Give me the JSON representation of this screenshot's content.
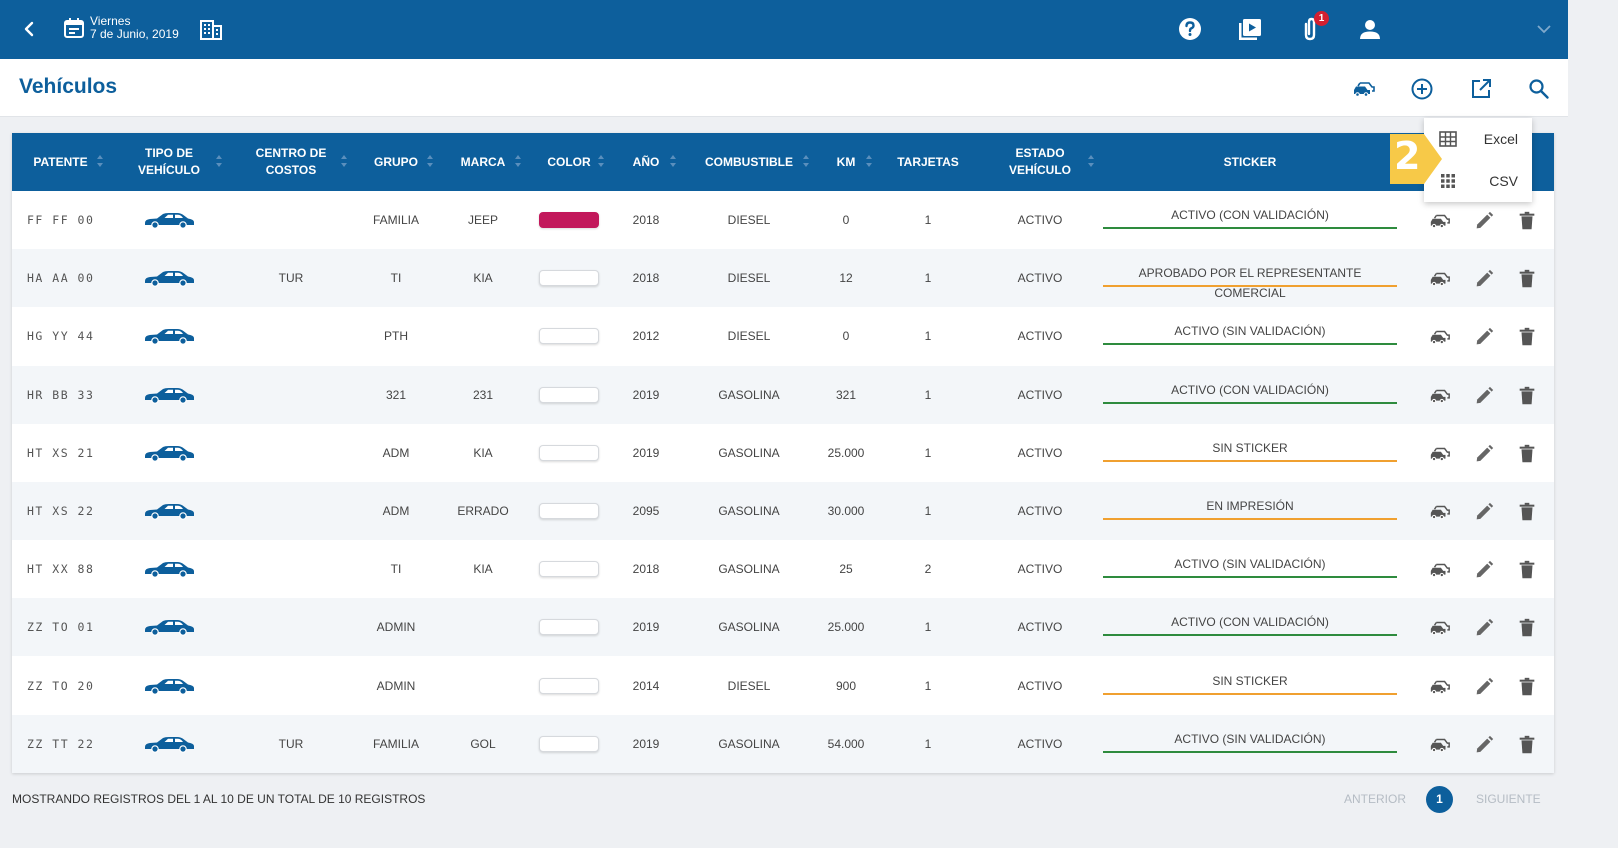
{
  "topbar": {
    "day": "Viernes",
    "date": "7 de Junio, 2019",
    "notifications_badge": "1"
  },
  "page": {
    "title": "Vehículos"
  },
  "table": {
    "headers": [
      "PATENTE",
      "TIPO DE VEHÍCULO",
      "CENTRO DE COSTOS",
      "GRUPO",
      "MARCA",
      "COLOR",
      "AÑO",
      "COMBUSTIBLE",
      "KM",
      "TARJETAS",
      "ESTADO VEHÍCULO",
      "STICKER"
    ],
    "rows": [
      {
        "plate": "FF FF 00",
        "cost_center": "",
        "group": "FAMILIA",
        "brand": "JEEP",
        "color": "#c2185b",
        "year": "2018",
        "fuel": "DIESEL",
        "km": "0",
        "cards": "1",
        "status": "ACTIVO",
        "sticker": "ACTIVO (CON VALIDACIÓN)",
        "sticker_color": "green"
      },
      {
        "plate": "HA AA 00",
        "cost_center": "TUR",
        "group": "TI",
        "brand": "KIA",
        "color": "#ffffff",
        "year": "2018",
        "fuel": "DIESEL",
        "km": "12",
        "cards": "1",
        "status": "ACTIVO",
        "sticker": "APROBADO POR EL REPRESENTANTE COMERCIAL",
        "sticker_color": "orange"
      },
      {
        "plate": "HG YY 44",
        "cost_center": "",
        "group": "PTH",
        "brand": "",
        "color": "#ffffff",
        "year": "2012",
        "fuel": "DIESEL",
        "km": "0",
        "cards": "1",
        "status": "ACTIVO",
        "sticker": "ACTIVO (SIN VALIDACIÓN)",
        "sticker_color": "green"
      },
      {
        "plate": "HR BB 33",
        "cost_center": "",
        "group": "321",
        "brand": "231",
        "color": "#ffffff",
        "year": "2019",
        "fuel": "GASOLINA",
        "km": "321",
        "cards": "1",
        "status": "ACTIVO",
        "sticker": "ACTIVO (CON VALIDACIÓN)",
        "sticker_color": "green"
      },
      {
        "plate": "HT XS 21",
        "cost_center": "",
        "group": "ADM",
        "brand": "KIA",
        "color": "#ffffff",
        "year": "2019",
        "fuel": "GASOLINA",
        "km": "25.000",
        "cards": "1",
        "status": "ACTIVO",
        "sticker": "SIN STICKER",
        "sticker_color": "orange"
      },
      {
        "plate": "HT XS 22",
        "cost_center": "",
        "group": "ADM",
        "brand": "ERRADO",
        "color": "#ffffff",
        "year": "2095",
        "fuel": "GASOLINA",
        "km": "30.000",
        "cards": "1",
        "status": "ACTIVO",
        "sticker": "EN IMPRESIÓN",
        "sticker_color": "orange"
      },
      {
        "plate": "HT XX 88",
        "cost_center": "",
        "group": "TI",
        "brand": "KIA",
        "color": "#ffffff",
        "year": "2018",
        "fuel": "GASOLINA",
        "km": "25",
        "cards": "2",
        "status": "ACTIVO",
        "sticker": "ACTIVO (SIN VALIDACIÓN)",
        "sticker_color": "green"
      },
      {
        "plate": "ZZ TO 01",
        "cost_center": "",
        "group": "ADMIN",
        "brand": "",
        "color": "#ffffff",
        "year": "2019",
        "fuel": "GASOLINA",
        "km": "25.000",
        "cards": "1",
        "status": "ACTIVO",
        "sticker": "ACTIVO (CON VALIDACIÓN)",
        "sticker_color": "green"
      },
      {
        "plate": "ZZ TO 20",
        "cost_center": "",
        "group": "ADMIN",
        "brand": "",
        "color": "#ffffff",
        "year": "2014",
        "fuel": "DIESEL",
        "km": "900",
        "cards": "1",
        "status": "ACTIVO",
        "sticker": "SIN STICKER",
        "sticker_color": "orange"
      },
      {
        "plate": "ZZ TT 22",
        "cost_center": "TUR",
        "group": "FAMILIA",
        "brand": "GOL",
        "color": "#ffffff",
        "year": "2019",
        "fuel": "GASOLINA",
        "km": "54.000",
        "cards": "1",
        "status": "ACTIVO",
        "sticker": "ACTIVO (SIN VALIDACIÓN)",
        "sticker_color": "green"
      }
    ]
  },
  "export_menu": {
    "excel_label": "Excel",
    "csv_label": "CSV",
    "step_marker": "2"
  },
  "footer": {
    "summary": "MOSTRANDO REGISTROS DEL 1 AL 10 DE UN TOTAL DE 10 REGISTROS",
    "prev_label": "ANTERIOR",
    "current_page": "1",
    "next_label": "SIGUIENTE"
  },
  "colors": {
    "primary": "#0d5f9c",
    "sticker_green": "#2e8b3e",
    "sticker_orange": "#f0a030",
    "badge_red": "#d32030",
    "step_yellow": "#f7c948"
  }
}
